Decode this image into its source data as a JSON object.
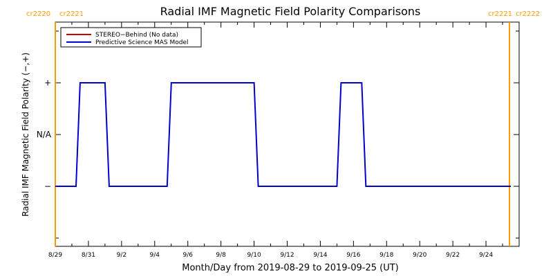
{
  "chart_data": {
    "type": "line",
    "title": "Radial IMF Magnetic Field Polarity Comparisons",
    "xlabel": "Month/Day from 2019-08-29 to 2019-09-25 (UT)",
    "ylabel": "Radial IMF Magnetic Field Polarity (−,+)",
    "xlim": [
      "2019-08-29",
      "2019-09-26"
    ],
    "y_levels": [
      "−",
      "N/A",
      "+"
    ],
    "y_ticks": [
      {
        "label": "+",
        "value": 1
      },
      {
        "label": "N/A",
        "value": 0
      },
      {
        "label": "−",
        "value": -1
      }
    ],
    "x_ticks": [
      "8/29",
      "8/31",
      "9/2",
      "9/4",
      "9/6",
      "9/8",
      "9/10",
      "9/12",
      "9/14",
      "9/16",
      "9/18",
      "9/20",
      "9/22",
      "9/24"
    ],
    "carrington_markers": [
      {
        "left_label": "cr2220",
        "right_label": "cr2221",
        "date": "2019-08-29",
        "color": "#ff9900"
      },
      {
        "left_label": "cr2221",
        "right_label": "cr2222",
        "date": "2019-09-25 10:00",
        "color": "#ff9900"
      }
    ],
    "legend_position": "top-left",
    "series": [
      {
        "name": "STEREO−Behind (No data)",
        "color": "#cc0000",
        "points": []
      },
      {
        "name": "Predictive Science MAS Model",
        "color": "#0000cc",
        "points": [
          [
            "2019-08-29 00:00",
            -1
          ],
          [
            "2019-08-30 06:00",
            -1
          ],
          [
            "2019-08-30 12:00",
            1
          ],
          [
            "2019-09-01 00:00",
            1
          ],
          [
            "2019-09-01 06:00",
            -1
          ],
          [
            "2019-09-04 18:00",
            -1
          ],
          [
            "2019-09-05 00:00",
            1
          ],
          [
            "2019-09-10 00:00",
            1
          ],
          [
            "2019-09-10 06:00",
            -1
          ],
          [
            "2019-09-15 00:00",
            -1
          ],
          [
            "2019-09-15 06:00",
            1
          ],
          [
            "2019-09-16 12:00",
            1
          ],
          [
            "2019-09-16 18:00",
            -1
          ],
          [
            "2019-09-25 12:00",
            -1
          ]
        ]
      }
    ]
  }
}
